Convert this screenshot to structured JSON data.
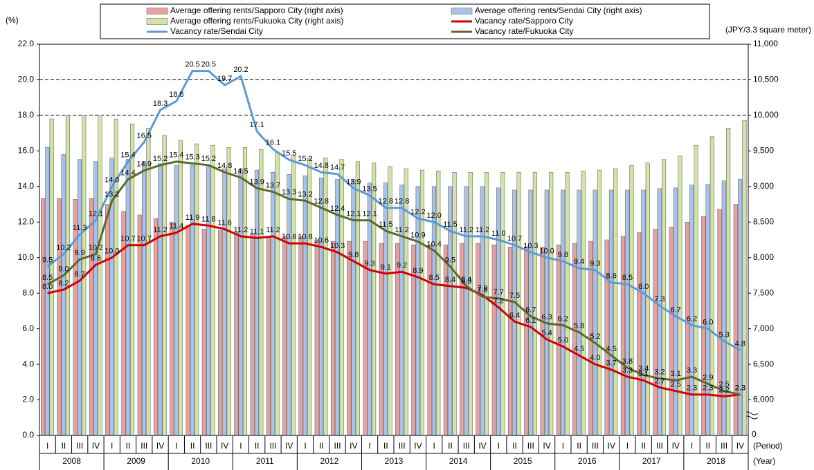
{
  "chart_data": {
    "type": "combo",
    "y_unit_label": "(%)",
    "y2_unit_label": "(JPY/3.3 square meter)",
    "period_label": "(Period)",
    "year_label": "(Year)",
    "categories": [
      "I",
      "II",
      "III",
      "IV",
      "I",
      "II",
      "III",
      "IV",
      "I",
      "II",
      "III",
      "IV",
      "I",
      "II",
      "III",
      "IV",
      "I",
      "II",
      "III",
      "IV",
      "I",
      "II",
      "III",
      "IV",
      "I",
      "II",
      "III",
      "IV",
      "I",
      "II",
      "III",
      "IV",
      "I",
      "II",
      "III",
      "IV",
      "I",
      "II",
      "III",
      "IV",
      "I",
      "II",
      "III",
      "IV"
    ],
    "years": [
      "2008",
      "2009",
      "2010",
      "2011",
      "2012",
      "2013",
      "2014",
      "2015",
      "2016",
      "2017",
      "2018"
    ],
    "ylim": [
      0,
      22
    ],
    "yticks": [
      {
        "value": 0,
        "label": "0.0"
      },
      {
        "value": 2,
        "label": "2.0"
      },
      {
        "value": 4,
        "label": "4.0"
      },
      {
        "value": 6,
        "label": "6.0"
      },
      {
        "value": 8,
        "label": "8.0"
      },
      {
        "value": 10,
        "label": "10.0"
      },
      {
        "value": 12,
        "label": "12.0"
      },
      {
        "value": 14,
        "label": "14.0"
      },
      {
        "value": 16,
        "label": "16.0"
      },
      {
        "value": 18,
        "label": "18.0"
      },
      {
        "value": 20,
        "label": "20.0"
      },
      {
        "value": 22,
        "label": "22.0"
      }
    ],
    "dashed_gridlines": [
      18,
      20
    ],
    "y2lim": [
      5500,
      11000
    ],
    "y2_floor_label": "0",
    "y2ticks": [
      {
        "value": 6000,
        "label": "6,000"
      },
      {
        "value": 6500,
        "label": "6,500"
      },
      {
        "value": 7000,
        "label": "7,000"
      },
      {
        "value": 7500,
        "label": "7,500"
      },
      {
        "value": 8000,
        "label": "8,000"
      },
      {
        "value": 8500,
        "label": "8,500"
      },
      {
        "value": 9000,
        "label": "9,000"
      },
      {
        "value": 9500,
        "label": "9,500"
      },
      {
        "value": 10000,
        "label": "10,000"
      },
      {
        "value": 10500,
        "label": "10,500"
      },
      {
        "value": 11000,
        "label": "11,000"
      }
    ],
    "series": [
      {
        "name": "Average offering rents/Sapporo City (right axis)",
        "type": "bar",
        "axis": "y2",
        "color": "#e4a3a3",
        "values": [
          8830,
          8830,
          8820,
          8830,
          8750,
          8650,
          8600,
          8550,
          8500,
          8450,
          8400,
          8380,
          8350,
          8330,
          8300,
          8300,
          8300,
          8250,
          8230,
          8230,
          8230,
          8200,
          8200,
          8180,
          8180,
          8180,
          8200,
          8200,
          8180,
          8150,
          8150,
          8150,
          8180,
          8200,
          8230,
          8250,
          8300,
          8350,
          8400,
          8430,
          8500,
          8580,
          8680,
          8750
        ]
      },
      {
        "name": "Average offering rents/Sendai City (right axis)",
        "type": "bar",
        "axis": "y2",
        "color": "#a9c3e6",
        "values": [
          9550,
          9450,
          9380,
          9350,
          9400,
          9380,
          9350,
          9320,
          9300,
          9300,
          9280,
          9250,
          9250,
          9230,
          9200,
          9170,
          9150,
          9120,
          9100,
          9100,
          9050,
          9050,
          9020,
          9000,
          9000,
          9000,
          9000,
          9000,
          8980,
          8950,
          8950,
          8950,
          8950,
          8950,
          8950,
          8950,
          8950,
          8950,
          8970,
          8980,
          9020,
          9030,
          9080,
          9100
        ]
      },
      {
        "name": "Average offering rents/Fukuoka City (right axis)",
        "type": "bar",
        "axis": "y2",
        "color": "#d3e2a6",
        "values": [
          9950,
          10000,
          10000,
          10000,
          9950,
          9880,
          9820,
          9720,
          9650,
          9600,
          9580,
          9550,
          9550,
          9520,
          9480,
          9430,
          9400,
          9400,
          9380,
          9350,
          9330,
          9280,
          9250,
          9230,
          9220,
          9200,
          9200,
          9200,
          9200,
          9200,
          9200,
          9200,
          9200,
          9220,
          9230,
          9250,
          9300,
          9330,
          9380,
          9430,
          9580,
          9700,
          9820,
          9930
        ]
      },
      {
        "name": "Vacancy rate/Sapporo City",
        "type": "line",
        "color": "#d10000",
        "values": [
          8.0,
          8.2,
          8.7,
          9.6,
          10.0,
          10.7,
          10.7,
          11.2,
          11.4,
          11.9,
          11.8,
          11.6,
          11.2,
          11.1,
          11.2,
          10.8,
          10.8,
          10.6,
          10.3,
          9.8,
          9.3,
          9.1,
          9.2,
          8.9,
          8.5,
          8.4,
          8.3,
          7.9,
          7.2,
          6.4,
          6.1,
          5.4,
          5.0,
          4.5,
          4.0,
          3.7,
          3.3,
          3.1,
          2.7,
          2.5,
          2.3,
          2.3,
          2.2,
          2.3
        ],
        "value_labels": [
          "8.0",
          "8.2",
          "8.7",
          "9.6",
          "10.0",
          "10.7",
          "10.7",
          "11.2",
          "11.4",
          "11.9",
          "11.8",
          "11.6",
          "11.2",
          "11.1",
          "11.2",
          "10.8",
          "10.8",
          "10.6",
          "10.3",
          "9.8",
          "9.3",
          "9.1",
          "9.2",
          "8.9",
          "8.5",
          "8.4",
          "8.3",
          "7.9",
          "7.2",
          "6.4",
          "6.1",
          "5.4",
          "5.0",
          "4.5",
          "4.0",
          "3.7",
          "3.3",
          "3.1",
          "2.7",
          "2.5",
          "2.3",
          "2.3",
          "2.2",
          "2.3"
        ]
      },
      {
        "name": "Vacancy rate/Sendai City",
        "type": "line",
        "color": "#5b9bd5",
        "values": [
          9.5,
          10.2,
          11.3,
          12.1,
          14.0,
          15.4,
          16.5,
          18.3,
          18.8,
          20.5,
          20.5,
          19.7,
          20.2,
          17.1,
          16.1,
          15.5,
          15.2,
          14.8,
          14.7,
          13.9,
          13.5,
          12.8,
          12.8,
          12.2,
          12.0,
          11.5,
          11.2,
          11.2,
          11.0,
          10.7,
          10.3,
          10.0,
          9.8,
          9.4,
          9.3,
          8.6,
          8.5,
          8.0,
          7.3,
          6.7,
          6.2,
          6.0,
          5.3,
          4.8
        ],
        "value_labels": [
          "9.5",
          "10.2",
          "11.3",
          "12.1",
          "14.0",
          "15.4",
          "16.5",
          "18.3",
          "18.8",
          "20.5",
          "20.5",
          "19.7",
          "20.2",
          "17.1",
          "16.1",
          "15.5",
          "15.2",
          "14.8",
          "14.7",
          "13.9",
          "13.5",
          "12.8",
          "12.8",
          "12.2",
          "12.0",
          "11.5",
          "11.2",
          "11.2",
          "11.0",
          "10.7",
          "10.3",
          "10.0",
          "9.8",
          "9.4",
          "9.3",
          "8.6",
          "8.5",
          "8.0",
          "7.3",
          "6.7",
          "6.2",
          "6.0",
          "5.3",
          "4.8"
        ]
      },
      {
        "name": "Vacancy rate/Fukuoka City",
        "type": "line",
        "color": "#5a6b2b",
        "values": [
          8.5,
          9.0,
          9.9,
          10.2,
          13.2,
          14.4,
          14.9,
          15.2,
          15.4,
          15.3,
          15.2,
          14.8,
          14.5,
          13.9,
          13.7,
          13.3,
          13.2,
          12.8,
          12.4,
          12.1,
          12.1,
          11.5,
          11.2,
          10.9,
          10.4,
          9.5,
          8.4,
          7.8,
          7.7,
          7.5,
          6.7,
          6.3,
          6.2,
          5.8,
          5.2,
          4.5,
          3.8,
          3.4,
          3.2,
          3.1,
          3.3,
          2.9,
          2.5,
          2.3
        ],
        "value_labels": [
          "8.5",
          "9.0",
          "9.9",
          "10.2",
          "13.2",
          "14.4",
          "14.9",
          "15.2",
          "15.4",
          "15.3",
          "15.2",
          "14.8",
          "14.5",
          "13.9",
          "13.7",
          "13.3",
          "13.2",
          "12.8",
          "12.4",
          "12.1",
          "12.1",
          "11.5",
          "11.2",
          "10.9",
          "10.4",
          "9.5",
          "8.4",
          "7.8",
          "7.7",
          "7.5",
          "6.7",
          "6.3",
          "6.2",
          "5.8",
          "5.2",
          "4.5",
          "3.8",
          "3.4",
          "3.2",
          "3.1",
          "3.3",
          "2.9",
          "2.5",
          "2.3"
        ]
      }
    ]
  }
}
